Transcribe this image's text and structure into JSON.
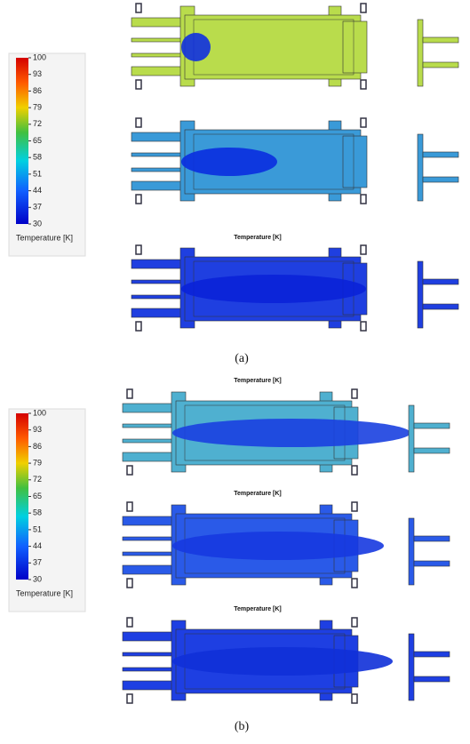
{
  "figure": {
    "panels": [
      {
        "label": "(a)",
        "colorbar": {
          "ticks": [
            100,
            93,
            86,
            79,
            72,
            65,
            58,
            51,
            44,
            37,
            30
          ],
          "label": "Temperature [K]"
        },
        "image_titles": [
          "Temperature [K]"
        ]
      },
      {
        "label": "(b)",
        "colorbar": {
          "ticks": [
            100,
            93,
            86,
            79,
            72,
            65,
            58,
            51,
            44,
            37,
            30
          ],
          "label": "Temperature [K]"
        },
        "image_titles": [
          "Temperature [K]",
          "Temperature [K]",
          "Temperature [K]"
        ]
      }
    ]
  }
}
